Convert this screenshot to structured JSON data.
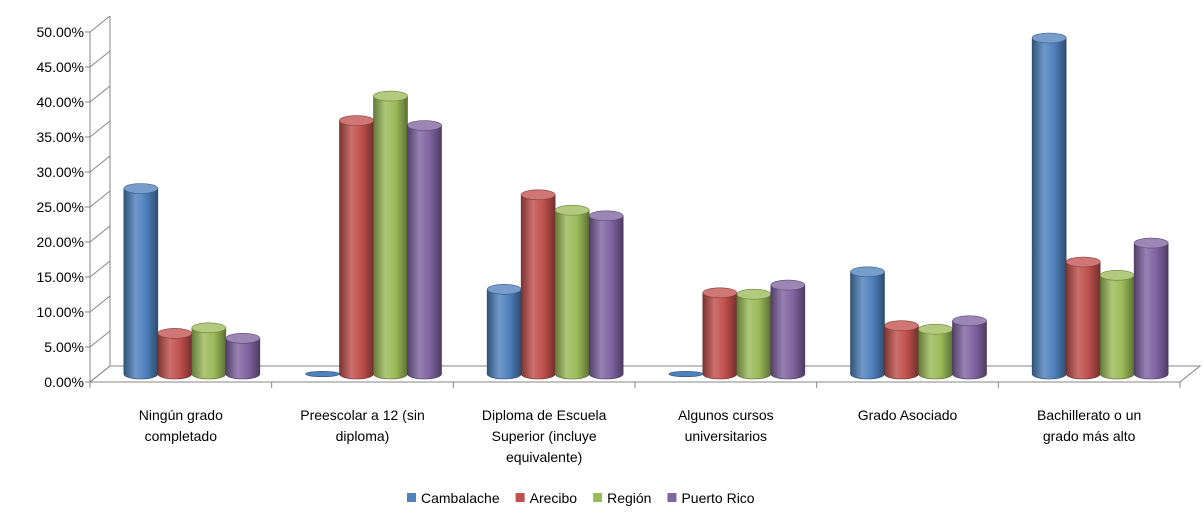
{
  "chart_data": {
    "type": "bar",
    "categories": [
      [
        "Ningún grado",
        "completado"
      ],
      [
        "Preescolar a 12 (sin",
        "diploma)"
      ],
      [
        "Diploma de Escuela",
        "Superior (incluye",
        "equivalente)"
      ],
      [
        "Algunos cursos",
        "universitarios"
      ],
      [
        "Grado Asociado"
      ],
      [
        "Bachillerato o un",
        "grado más  alto"
      ]
    ],
    "series": [
      {
        "name": "Cambalache",
        "color": "#4f81bd",
        "values": [
          26.5,
          0.0,
          12.1,
          0.0,
          14.6,
          48.0
        ]
      },
      {
        "name": "Arecibo",
        "color": "#c0504d",
        "values": [
          5.8,
          36.2,
          25.6,
          11.6,
          6.9,
          16.0
        ]
      },
      {
        "name": "Región",
        "color": "#9bbb59",
        "values": [
          6.6,
          39.7,
          23.4,
          11.4,
          6.4,
          14.1
        ]
      },
      {
        "name": "Puerto Rico",
        "color": "#8064a2",
        "values": [
          5.1,
          35.5,
          22.6,
          12.7,
          7.6,
          18.7
        ]
      }
    ],
    "ylim": [
      0,
      50
    ],
    "yticks": [
      "0.00%",
      "5.00%",
      "10.00%",
      "15.00%",
      "20.00%",
      "25.00%",
      "30.00%",
      "35.00%",
      "40.00%",
      "45.00%",
      "50.00%"
    ],
    "grid": false,
    "legend_position": "bottom",
    "style": "3d-cylinder"
  }
}
